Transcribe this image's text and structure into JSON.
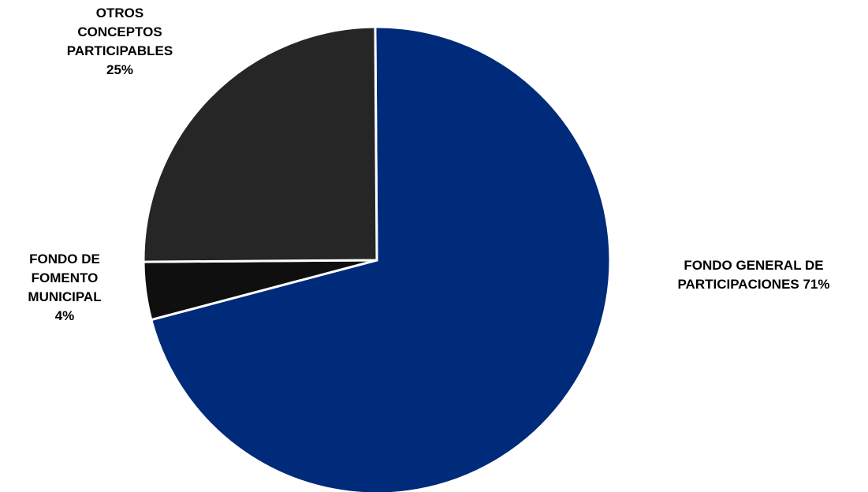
{
  "chart_data": {
    "type": "pie",
    "title": "",
    "slices": [
      {
        "label_lines": [
          "FONDO GENERAL DE",
          "PARTICIPACIONES 71%"
        ],
        "value": 71,
        "color": "#002a7a"
      },
      {
        "label_lines": [
          "FONDO DE",
          "FOMENTO",
          "MUNICIPAL",
          "4%"
        ],
        "value": 4,
        "color": "#0f0f0f"
      },
      {
        "label_lines": [
          "OTROS",
          "CONCEPTOS",
          "PARTICIPABLES",
          "25%"
        ],
        "value": 25,
        "color": "#262626"
      }
    ]
  }
}
